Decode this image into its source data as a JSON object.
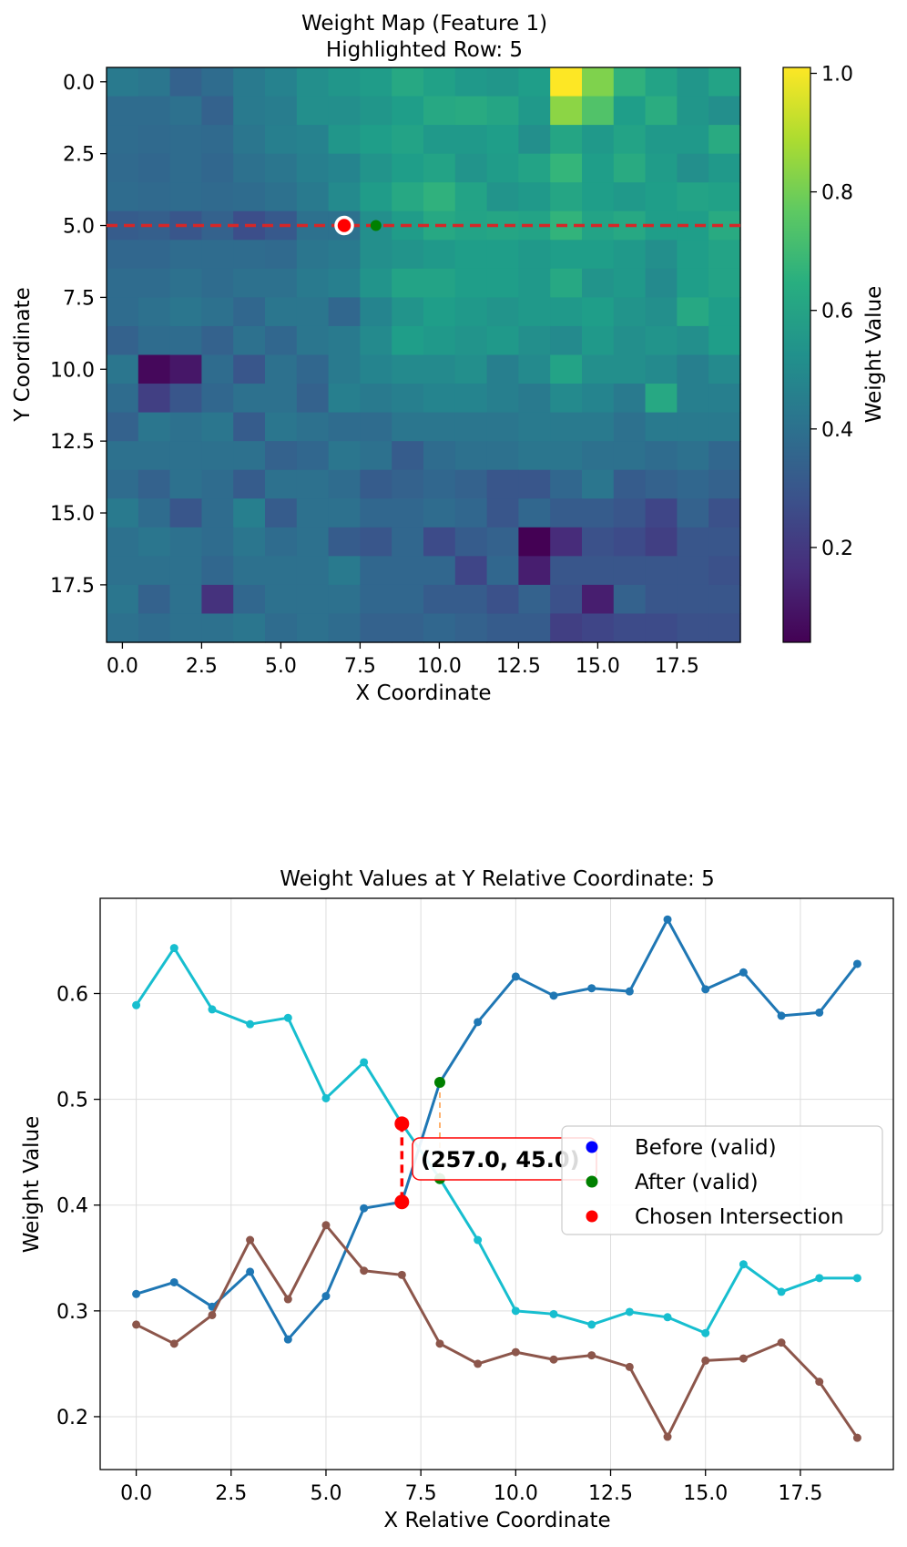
{
  "colors": {
    "highlight_line": "#d62728",
    "chosen_point": "#ff0000",
    "after_point": "#008000",
    "before_point": "#0000ff",
    "series_blue": "#1f77b4",
    "series_cyan": "#17becf",
    "series_brown": "#8c564b",
    "annotation_border": "#ff0000",
    "grid": "#dddddd"
  },
  "chart_data": [
    {
      "type": "heatmap",
      "title": "Weight Map (Feature 1)",
      "subtitle": "Highlighted Row: 5",
      "xlabel": "X Coordinate",
      "ylabel": "Y Coordinate",
      "colorbar_label": "Weight Value",
      "colormap": "viridis",
      "vmin": 0.04,
      "vmax": 1.01,
      "colorbar_ticks": [
        {
          "value": 0.2,
          "label": "0.2"
        },
        {
          "value": 0.4,
          "label": "0.4"
        },
        {
          "value": 0.6,
          "label": "0.6"
        },
        {
          "value": 0.8,
          "label": "0.8"
        },
        {
          "value": 1.0,
          "label": "1.0"
        }
      ],
      "xticks": [
        {
          "value": 0,
          "label": "0.0"
        },
        {
          "value": 2.5,
          "label": "2.5"
        },
        {
          "value": 5,
          "label": "5.0"
        },
        {
          "value": 7.5,
          "label": "7.5"
        },
        {
          "value": 10,
          "label": "10.0"
        },
        {
          "value": 12.5,
          "label": "12.5"
        },
        {
          "value": 15,
          "label": "15.0"
        },
        {
          "value": 17.5,
          "label": "17.5"
        }
      ],
      "yticks": [
        {
          "value": 0,
          "label": "0.0"
        },
        {
          "value": 2.5,
          "label": "2.5"
        },
        {
          "value": 5,
          "label": "5.0"
        },
        {
          "value": 7.5,
          "label": "7.5"
        },
        {
          "value": 10,
          "label": "10.0"
        },
        {
          "value": 12.5,
          "label": "12.5"
        },
        {
          "value": 15,
          "label": "15.0"
        },
        {
          "value": 17.5,
          "label": "17.5"
        }
      ],
      "highlighted_row": 5,
      "markers": [
        {
          "name": "chosen",
          "x": 7,
          "y": 5
        },
        {
          "name": "after",
          "x": 8,
          "y": 5
        }
      ],
      "values": [
        [
          0.44,
          0.42,
          0.34,
          0.38,
          0.44,
          0.47,
          0.52,
          0.55,
          0.57,
          0.62,
          0.59,
          0.56,
          0.55,
          0.58,
          1.01,
          0.82,
          0.66,
          0.6,
          0.55,
          0.6
        ],
        [
          0.38,
          0.38,
          0.4,
          0.34,
          0.44,
          0.45,
          0.52,
          0.52,
          0.55,
          0.58,
          0.62,
          0.63,
          0.61,
          0.56,
          0.84,
          0.74,
          0.58,
          0.64,
          0.55,
          0.52
        ],
        [
          0.38,
          0.37,
          0.38,
          0.37,
          0.42,
          0.46,
          0.47,
          0.55,
          0.58,
          0.6,
          0.56,
          0.56,
          0.58,
          0.52,
          0.61,
          0.56,
          0.6,
          0.56,
          0.56,
          0.63
        ],
        [
          0.37,
          0.36,
          0.38,
          0.36,
          0.4,
          0.42,
          0.46,
          0.48,
          0.54,
          0.58,
          0.6,
          0.54,
          0.57,
          0.6,
          0.68,
          0.58,
          0.63,
          0.57,
          0.52,
          0.56
        ],
        [
          0.38,
          0.37,
          0.38,
          0.37,
          0.38,
          0.4,
          0.44,
          0.5,
          0.57,
          0.62,
          0.66,
          0.6,
          0.54,
          0.56,
          0.61,
          0.58,
          0.56,
          0.58,
          0.6,
          0.59
        ],
        [
          0.32,
          0.33,
          0.3,
          0.34,
          0.27,
          0.31,
          0.4,
          0.4,
          0.52,
          0.57,
          0.62,
          0.6,
          0.61,
          0.6,
          0.67,
          0.6,
          0.62,
          0.58,
          0.58,
          0.63
        ],
        [
          0.36,
          0.36,
          0.38,
          0.38,
          0.38,
          0.37,
          0.42,
          0.44,
          0.52,
          0.54,
          0.56,
          0.58,
          0.58,
          0.56,
          0.58,
          0.58,
          0.56,
          0.52,
          0.58,
          0.6
        ],
        [
          0.38,
          0.38,
          0.4,
          0.38,
          0.4,
          0.4,
          0.44,
          0.46,
          0.54,
          0.6,
          0.6,
          0.58,
          0.58,
          0.56,
          0.62,
          0.54,
          0.56,
          0.5,
          0.58,
          0.6
        ],
        [
          0.38,
          0.4,
          0.42,
          0.4,
          0.36,
          0.42,
          0.42,
          0.36,
          0.48,
          0.54,
          0.58,
          0.56,
          0.54,
          0.56,
          0.56,
          0.58,
          0.54,
          0.52,
          0.62,
          0.58
        ],
        [
          0.34,
          0.38,
          0.38,
          0.34,
          0.4,
          0.36,
          0.42,
          0.44,
          0.5,
          0.58,
          0.56,
          0.54,
          0.56,
          0.52,
          0.5,
          0.56,
          0.52,
          0.54,
          0.52,
          0.58
        ],
        [
          0.42,
          0.06,
          0.1,
          0.38,
          0.3,
          0.4,
          0.36,
          0.44,
          0.48,
          0.5,
          0.5,
          0.52,
          0.46,
          0.5,
          0.6,
          0.52,
          0.52,
          0.5,
          0.46,
          0.5
        ],
        [
          0.38,
          0.22,
          0.3,
          0.36,
          0.4,
          0.4,
          0.34,
          0.46,
          0.44,
          0.46,
          0.48,
          0.48,
          0.46,
          0.44,
          0.5,
          0.48,
          0.44,
          0.62,
          0.46,
          0.46
        ],
        [
          0.34,
          0.42,
          0.4,
          0.42,
          0.32,
          0.42,
          0.4,
          0.38,
          0.38,
          0.42,
          0.42,
          0.42,
          0.42,
          0.44,
          0.44,
          0.44,
          0.4,
          0.44,
          0.44,
          0.44
        ],
        [
          0.4,
          0.4,
          0.4,
          0.4,
          0.4,
          0.34,
          0.36,
          0.42,
          0.4,
          0.32,
          0.38,
          0.4,
          0.4,
          0.42,
          0.42,
          0.4,
          0.4,
          0.38,
          0.4,
          0.36
        ],
        [
          0.38,
          0.34,
          0.4,
          0.38,
          0.32,
          0.4,
          0.4,
          0.38,
          0.32,
          0.34,
          0.36,
          0.34,
          0.3,
          0.3,
          0.36,
          0.42,
          0.32,
          0.34,
          0.36,
          0.34
        ],
        [
          0.44,
          0.38,
          0.3,
          0.38,
          0.46,
          0.32,
          0.4,
          0.4,
          0.36,
          0.36,
          0.38,
          0.36,
          0.3,
          0.36,
          0.32,
          0.32,
          0.3,
          0.24,
          0.34,
          0.28
        ],
        [
          0.4,
          0.42,
          0.4,
          0.38,
          0.42,
          0.38,
          0.4,
          0.32,
          0.3,
          0.36,
          0.26,
          0.32,
          0.34,
          0.04,
          0.16,
          0.28,
          0.26,
          0.22,
          0.3,
          0.3
        ],
        [
          0.4,
          0.4,
          0.4,
          0.36,
          0.4,
          0.4,
          0.4,
          0.44,
          0.36,
          0.36,
          0.36,
          0.24,
          0.36,
          0.12,
          0.3,
          0.3,
          0.3,
          0.3,
          0.3,
          0.28
        ],
        [
          0.42,
          0.34,
          0.4,
          0.18,
          0.36,
          0.4,
          0.4,
          0.4,
          0.36,
          0.36,
          0.32,
          0.32,
          0.28,
          0.34,
          0.28,
          0.12,
          0.34,
          0.3,
          0.3,
          0.3
        ],
        [
          0.4,
          0.38,
          0.4,
          0.4,
          0.42,
          0.38,
          0.4,
          0.38,
          0.34,
          0.34,
          0.36,
          0.34,
          0.32,
          0.32,
          0.22,
          0.24,
          0.26,
          0.26,
          0.28,
          0.28
        ]
      ]
    },
    {
      "type": "line",
      "title": "Weight Values at Y Relative Coordinate: 5",
      "xlabel": "X Relative Coordinate",
      "ylabel": "Weight Value",
      "xlim": [
        -0.95,
        19.95
      ],
      "ylim": [
        0.15,
        0.69
      ],
      "grid": true,
      "xticks": [
        {
          "value": 0,
          "label": "0.0"
        },
        {
          "value": 2.5,
          "label": "2.5"
        },
        {
          "value": 5,
          "label": "5.0"
        },
        {
          "value": 7.5,
          "label": "7.5"
        },
        {
          "value": 10,
          "label": "10.0"
        },
        {
          "value": 12.5,
          "label": "12.5"
        },
        {
          "value": 15,
          "label": "15.0"
        },
        {
          "value": 17.5,
          "label": "17.5"
        }
      ],
      "yticks": [
        {
          "value": 0.2,
          "label": "0.2"
        },
        {
          "value": 0.3,
          "label": "0.3"
        },
        {
          "value": 0.4,
          "label": "0.4"
        },
        {
          "value": 0.5,
          "label": "0.5"
        },
        {
          "value": 0.6,
          "label": "0.6"
        }
      ],
      "x": [
        0,
        1,
        2,
        3,
        4,
        5,
        6,
        7,
        8,
        9,
        10,
        11,
        12,
        13,
        14,
        15,
        16,
        17,
        18,
        19
      ],
      "series": [
        {
          "name": "blue",
          "color_key": "series_blue",
          "values": [
            0.316,
            0.327,
            0.304,
            0.337,
            0.273,
            0.314,
            0.397,
            0.403,
            0.516,
            0.573,
            0.616,
            0.598,
            0.605,
            0.602,
            0.67,
            0.604,
            0.62,
            0.579,
            0.582,
            0.628
          ]
        },
        {
          "name": "cyan",
          "color_key": "series_cyan",
          "values": [
            0.589,
            0.643,
            0.585,
            0.571,
            0.577,
            0.501,
            0.535,
            0.477,
            0.425,
            0.367,
            0.3,
            0.297,
            0.287,
            0.299,
            0.294,
            0.279,
            0.344,
            0.318,
            0.331,
            0.331
          ]
        },
        {
          "name": "brown",
          "color_key": "series_brown",
          "values": [
            0.287,
            0.269,
            0.296,
            0.367,
            0.311,
            0.381,
            0.338,
            0.334,
            0.269,
            0.25,
            0.261,
            0.254,
            0.258,
            0.247,
            0.181,
            0.253,
            0.255,
            0.27,
            0.233,
            0.18
          ]
        }
      ],
      "chosen_points": [
        {
          "x": 7,
          "y": 0.477
        },
        {
          "x": 7,
          "y": 0.403
        }
      ],
      "after_points": [
        {
          "x": 8,
          "y": 0.516
        },
        {
          "x": 8,
          "y": 0.425
        }
      ],
      "annotation": {
        "text": "(257.0, 45.0)",
        "x": 7.5,
        "y": 0.445
      },
      "legend": {
        "position": "center-right",
        "entries": [
          {
            "label": "Before (valid)",
            "color_key": "before_point"
          },
          {
            "label": "After (valid)",
            "color_key": "after_point"
          },
          {
            "label": "Chosen Intersection",
            "color_key": "chosen_point"
          }
        ]
      }
    }
  ]
}
